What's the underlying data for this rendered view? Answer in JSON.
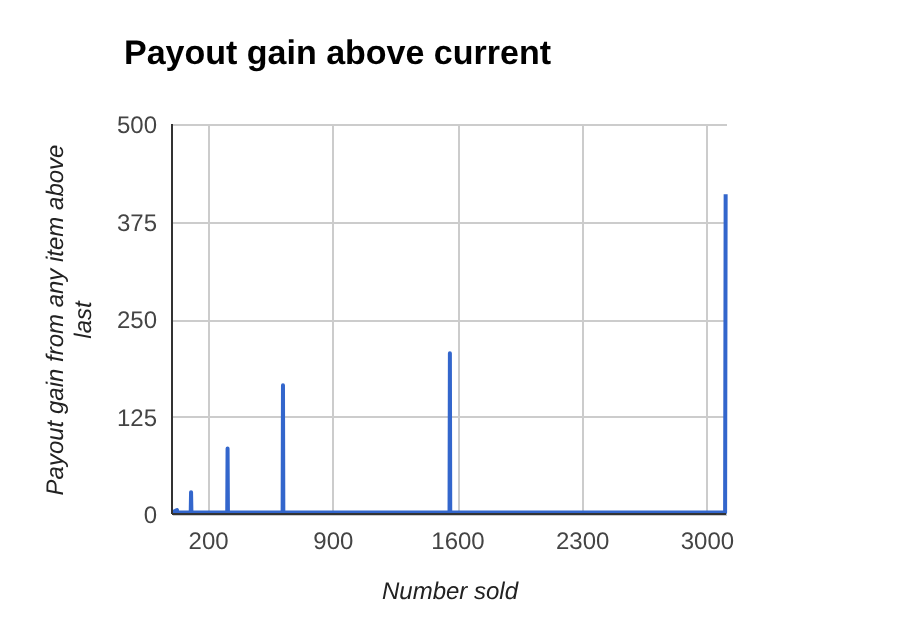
{
  "chart_data": {
    "type": "line",
    "title": "Payout gain above current",
    "xlabel": "Number sold",
    "ylabel": "Payout gain from any item above last",
    "x": [
      0,
      28,
      30,
      105,
      107,
      109,
      310,
      312,
      314,
      621,
      623,
      625,
      1558,
      1560,
      1562,
      3105,
      3108
    ],
    "series": [
      {
        "color": "#3366cc",
        "values": [
          2,
          5,
          2,
          2,
          28,
          2,
          2,
          84,
          2,
          2,
          165,
          2,
          2,
          206,
          2,
          2,
          410
        ]
      }
    ],
    "xlim": [
      0,
      3110
    ],
    "xticks": [
      200,
      900,
      1600,
      2300,
      3000
    ],
    "ylim": [
      0,
      500
    ],
    "yticks": [
      0,
      125,
      250,
      375,
      500
    ],
    "grid": true,
    "legend": false,
    "marker": "none",
    "line_style": "solid"
  }
}
